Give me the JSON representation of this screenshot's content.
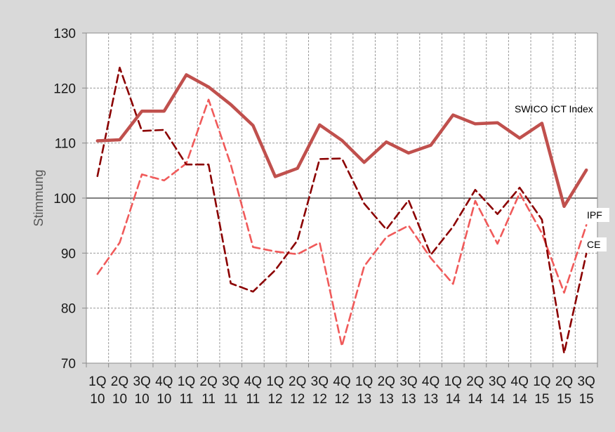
{
  "chart_data": {
    "type": "line",
    "ylabel": "Stimmung",
    "ylim": [
      70,
      130
    ],
    "yticks": [
      70,
      80,
      90,
      100,
      110,
      120,
      130
    ],
    "reference_line": 100,
    "grid": true,
    "categories": [
      [
        "1Q",
        "10"
      ],
      [
        "2Q",
        "10"
      ],
      [
        "3Q",
        "10"
      ],
      [
        "4Q",
        "10"
      ],
      [
        "1Q",
        "11"
      ],
      [
        "2Q",
        "11"
      ],
      [
        "3Q",
        "11"
      ],
      [
        "4Q",
        "11"
      ],
      [
        "1Q",
        "12"
      ],
      [
        "2Q",
        "12"
      ],
      [
        "3Q",
        "12"
      ],
      [
        "4Q",
        "12"
      ],
      [
        "1Q",
        "13"
      ],
      [
        "2Q",
        "13"
      ],
      [
        "3Q",
        "13"
      ],
      [
        "4Q",
        "13"
      ],
      [
        "1Q",
        "14"
      ],
      [
        "2Q",
        "14"
      ],
      [
        "3Q",
        "14"
      ],
      [
        "4Q",
        "14"
      ],
      [
        "1Q",
        "15"
      ],
      [
        "2Q",
        "15"
      ],
      [
        "3Q",
        "15"
      ]
    ],
    "series": [
      {
        "name": "SWICO ICT Index",
        "color": "#c0504d",
        "style": "solid",
        "values": [
          110.4,
          110.6,
          115.8,
          115.8,
          122.4,
          120.2,
          117.0,
          113.2,
          103.9,
          105.4,
          113.3,
          110.5,
          106.5,
          110.2,
          108.2,
          109.6,
          115.1,
          113.5,
          113.7,
          110.9,
          113.6,
          98.5,
          105.1
        ]
      },
      {
        "name": "IPF",
        "color": "#8b0000",
        "style": "dashed",
        "values": [
          104.0,
          123.7,
          112.2,
          112.4,
          106.1,
          106.1,
          84.5,
          83.0,
          86.9,
          92.3,
          107.1,
          107.2,
          99.0,
          94.3,
          99.6,
          89.7,
          94.8,
          101.5,
          97.1,
          101.9,
          96.1,
          71.8,
          89.9
        ]
      },
      {
        "name": "CE",
        "color": "#f05a5a",
        "style": "dashed",
        "values": [
          86.2,
          91.9,
          104.3,
          103.2,
          106.3,
          117.9,
          106.1,
          91.1,
          90.3,
          89.8,
          91.9,
          73.1,
          87.6,
          92.9,
          95.0,
          89.1,
          84.4,
          99.5,
          91.7,
          100.9,
          93.6,
          82.8,
          95.1
        ]
      }
    ]
  }
}
